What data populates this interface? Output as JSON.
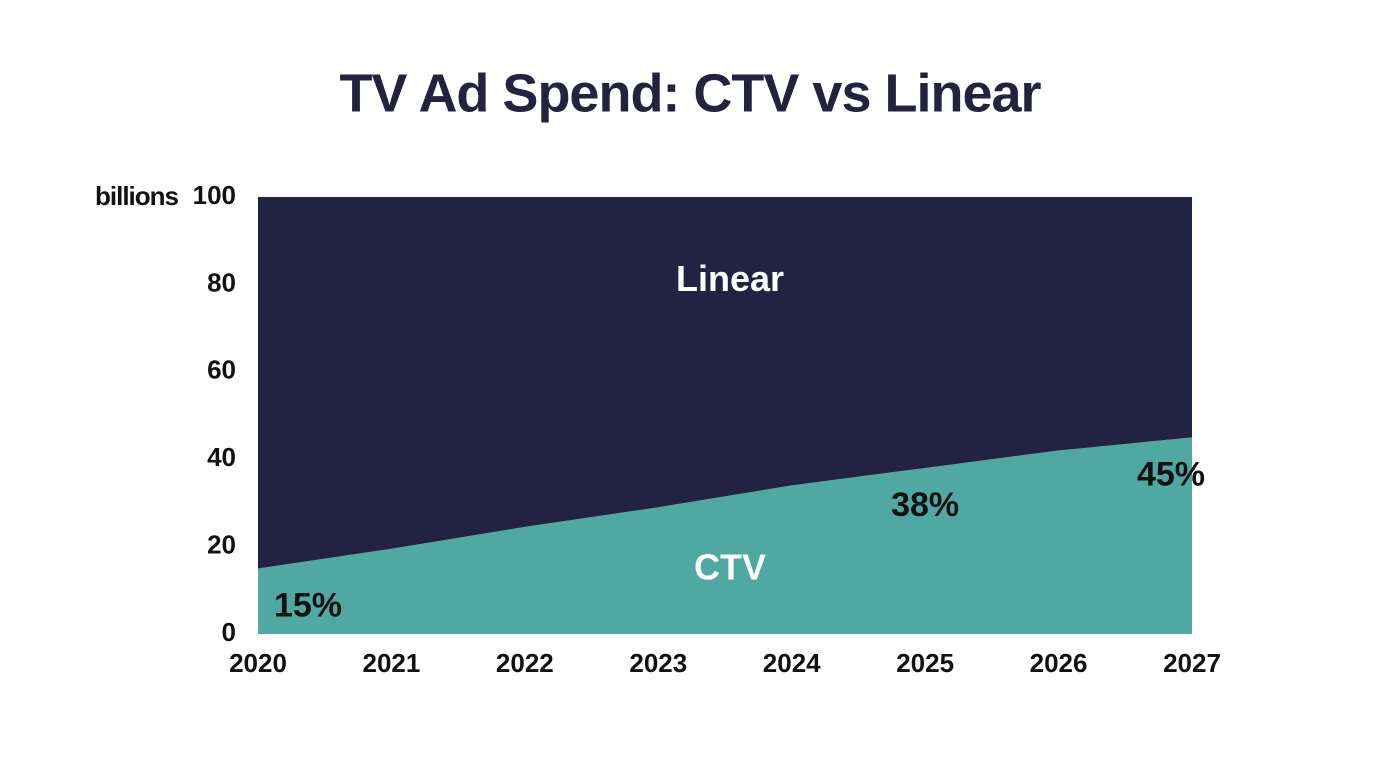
{
  "chart_data": {
    "type": "stacked-area",
    "title": "TV Ad Spend: CTV vs Linear",
    "y_label": "billions",
    "x": [
      2020,
      2021,
      2022,
      2023,
      2024,
      2025,
      2026,
      2027
    ],
    "xlim": [
      2020,
      2027
    ],
    "xticks": [
      2020,
      2021,
      2022,
      2023,
      2024,
      2025,
      2026,
      2027
    ],
    "ylim": [
      0,
      100
    ],
    "yticks": [
      0,
      20,
      40,
      60,
      80,
      100
    ],
    "grid": false,
    "series": [
      {
        "name": "CTV",
        "color": "#4fa9a2",
        "values": [
          15,
          19.5,
          24.5,
          29,
          34,
          38,
          42,
          45
        ],
        "value_labels": [
          "15%",
          null,
          null,
          null,
          null,
          "38%",
          null,
          "45%"
        ]
      },
      {
        "name": "Linear",
        "color": "#222342",
        "values": [
          85,
          80.5,
          75.5,
          71,
          66,
          62,
          58,
          55
        ]
      }
    ]
  }
}
